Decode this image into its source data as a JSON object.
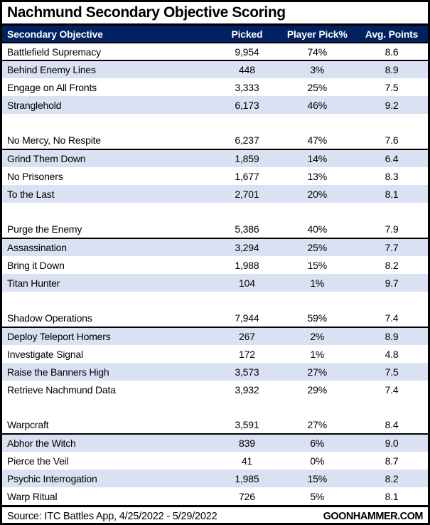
{
  "title": "Nachmund Secondary Objective Scoring",
  "footer": {
    "source": "Source: ITC Battles App, 4/25/2022 - 5/29/2022",
    "brand": "GOONHAMMER.COM"
  },
  "colors": {
    "header_bg": "#002060",
    "header_text": "#FFFFFF",
    "row_alt_bg": "#D9E1F2",
    "border": "#000000"
  },
  "chart_data": {
    "type": "table",
    "title": "Nachmund Secondary Objective Scoring",
    "columns": [
      "Secondary Objective",
      "Picked",
      "Player Pick%",
      "Avg. Points"
    ],
    "groups": [
      {
        "rows": [
          [
            "Battlefield Supremacy",
            "9,954",
            "74%",
            "8.6"
          ],
          [
            "Behind Enemy Lines",
            "448",
            "3%",
            "8.9"
          ],
          [
            "Engage on All Fronts",
            "3,333",
            "25%",
            "7.5"
          ],
          [
            "Stranglehold",
            "6,173",
            "46%",
            "9.2"
          ]
        ]
      },
      {
        "rows": [
          [
            "No Mercy, No Respite",
            "6,237",
            "47%",
            "7.6"
          ],
          [
            "Grind Them Down",
            "1,859",
            "14%",
            "6.4"
          ],
          [
            "No Prisoners",
            "1,677",
            "13%",
            "8.3"
          ],
          [
            "To the Last",
            "2,701",
            "20%",
            "8.1"
          ]
        ]
      },
      {
        "rows": [
          [
            "Purge the Enemy",
            "5,386",
            "40%",
            "7.9"
          ],
          [
            "Assassination",
            "3,294",
            "25%",
            "7.7"
          ],
          [
            "Bring it Down",
            "1,988",
            "15%",
            "8.2"
          ],
          [
            "Titan Hunter",
            "104",
            "1%",
            "9.7"
          ]
        ]
      },
      {
        "rows": [
          [
            "Shadow Operations",
            "7,944",
            "59%",
            "7.4"
          ],
          [
            "Deploy Teleport Homers",
            "267",
            "2%",
            "8.9"
          ],
          [
            "Investigate Signal",
            "172",
            "1%",
            "4.8"
          ],
          [
            "Raise the Banners High",
            "3,573",
            "27%",
            "7.5"
          ],
          [
            "Retrieve Nachmund Data",
            "3,932",
            "29%",
            "7.4"
          ]
        ]
      },
      {
        "rows": [
          [
            "Warpcraft",
            "3,591",
            "27%",
            "8.4"
          ],
          [
            "Abhor the Witch",
            "839",
            "6%",
            "9.0"
          ],
          [
            "Pierce the Veil",
            "41",
            "0%",
            "8.7"
          ],
          [
            "Psychic Interrogation",
            "1,985",
            "15%",
            "8.2"
          ],
          [
            "Warp Ritual",
            "726",
            "5%",
            "8.1"
          ]
        ]
      }
    ]
  }
}
